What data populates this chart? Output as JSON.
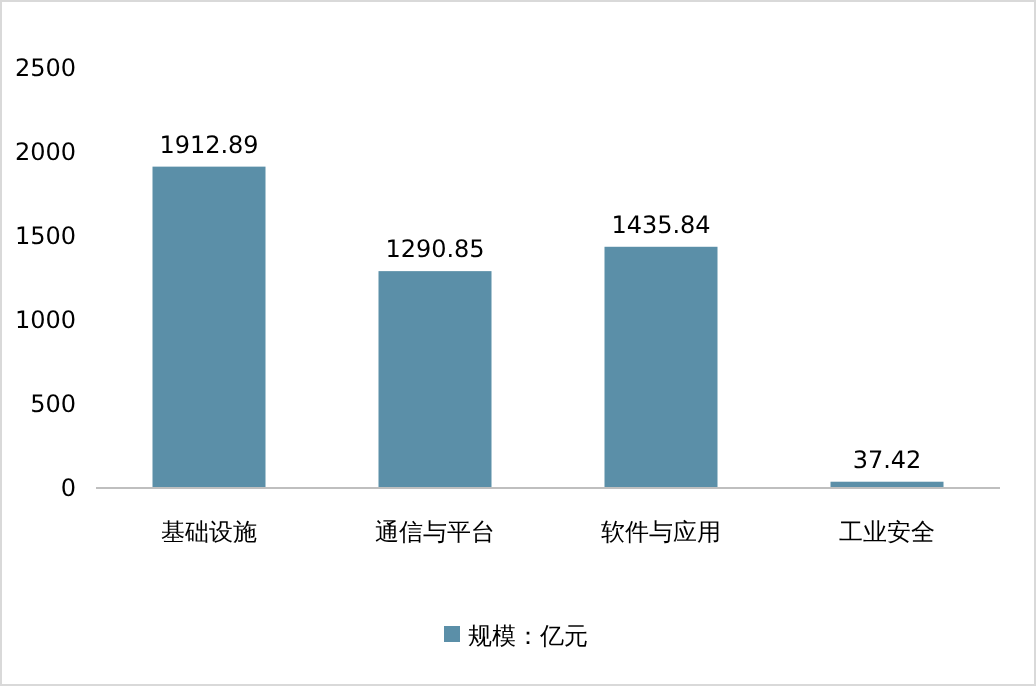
{
  "chart_data": {
    "type": "bar",
    "categories": [
      "基础设施",
      "通信与平台",
      "软件与应用",
      "工业安全"
    ],
    "series": [
      {
        "name": "规模：亿元",
        "color": "#5b8fa8",
        "values": [
          1912.89,
          1290.85,
          1435.84,
          37.42
        ]
      }
    ],
    "ylim": [
      0,
      2500
    ],
    "yticks": [
      0,
      500,
      1000,
      1500,
      2000,
      2500
    ],
    "data_labels": true,
    "legend": "bottom"
  }
}
